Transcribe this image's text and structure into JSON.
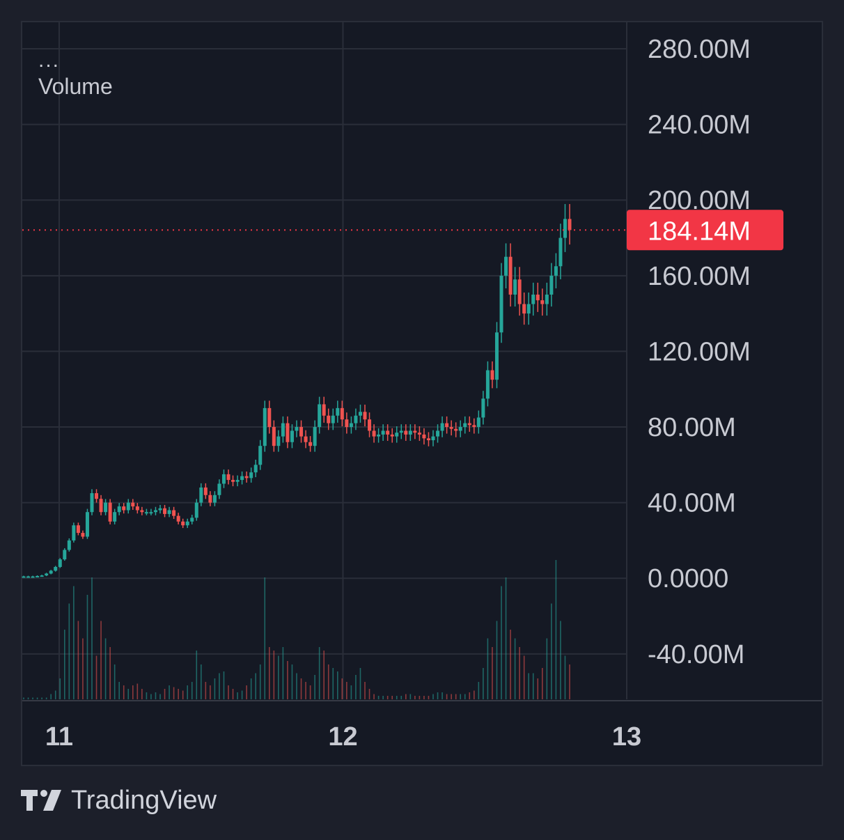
{
  "header": {
    "dots": "...",
    "indicator": "Volume"
  },
  "brand": {
    "name": "TradingView"
  },
  "colors": {
    "up": "#26a69a",
    "down": "#ef5350",
    "price_label_bg": "#f23645",
    "grid": "#2a2e39",
    "axis_text": "#c8cad2",
    "background": "#151924"
  },
  "chart_data": {
    "type": "candlestick",
    "y_axis": {
      "ticks": [
        280000000,
        240000000,
        200000000,
        160000000,
        120000000,
        80000000,
        40000000,
        0,
        -40000000
      ],
      "tick_labels": [
        "280.00M",
        "240.00M",
        "200.00M",
        "160.00M",
        "120.00M",
        "80.00M",
        "40.00M",
        "0.0000",
        "-40.00M"
      ],
      "range": [
        -64000000,
        294000000
      ]
    },
    "x_axis": {
      "ticks": [
        11,
        12,
        13
      ],
      "tick_labels": [
        "11",
        "12",
        "13"
      ],
      "range": [
        10.87,
        13
      ]
    },
    "last_price": {
      "value": 184140000,
      "label": "184.14M"
    },
    "series": [
      {
        "name": "Price",
        "close": [
          1000000,
          1000000,
          1000000,
          1200000,
          1500000,
          2500000,
          4000000,
          6000000,
          10000000,
          15000000,
          20000000,
          28000000,
          24000000,
          22000000,
          35000000,
          45000000,
          42000000,
          35000000,
          40000000,
          30000000,
          35000000,
          38000000,
          36000000,
          40000000,
          38000000,
          36000000,
          35000000,
          35000000,
          35000000,
          36000000,
          37000000,
          34000000,
          36000000,
          33000000,
          30000000,
          28000000,
          30000000,
          32000000,
          40000000,
          48000000,
          44000000,
          40000000,
          44000000,
          50000000,
          55000000,
          52000000,
          51000000,
          52000000,
          54000000,
          53000000,
          56000000,
          60000000,
          70000000,
          90000000,
          80000000,
          70000000,
          75000000,
          82000000,
          72000000,
          78000000,
          80000000,
          75000000,
          72000000,
          70000000,
          80000000,
          92000000,
          86000000,
          82000000,
          86000000,
          90000000,
          84000000,
          80000000,
          82000000,
          86000000,
          88000000,
          84000000,
          78000000,
          75000000,
          76000000,
          78000000,
          76000000,
          75000000,
          77000000,
          78000000,
          76000000,
          78000000,
          77000000,
          76000000,
          74000000,
          73000000,
          75000000,
          78000000,
          82000000,
          80000000,
          79000000,
          78000000,
          80000000,
          82000000,
          81000000,
          80000000,
          85000000,
          95000000,
          110000000,
          105000000,
          130000000,
          160000000,
          170000000,
          150000000,
          158000000,
          145000000,
          140000000,
          145000000,
          150000000,
          147000000,
          145000000,
          150000000,
          160000000,
          165000000,
          180000000,
          190000000,
          184140000
        ]
      },
      {
        "name": "Volume",
        "values": [
          1000000,
          1000000,
          1000000,
          1000000,
          1000000,
          1000000,
          3000000,
          5000000,
          12000000,
          40000000,
          55000000,
          65000000,
          45000000,
          35000000,
          60000000,
          70000000,
          25000000,
          45000000,
          35000000,
          30000000,
          20000000,
          10000000,
          8000000,
          6000000,
          8000000,
          9000000,
          6000000,
          4000000,
          3000000,
          4000000,
          3000000,
          6000000,
          8000000,
          7000000,
          6000000,
          5000000,
          8000000,
          10000000,
          28000000,
          20000000,
          10000000,
          8000000,
          12000000,
          15000000,
          16000000,
          8000000,
          6000000,
          4000000,
          5000000,
          8000000,
          12000000,
          15000000,
          20000000,
          70000000,
          30000000,
          28000000,
          25000000,
          30000000,
          22000000,
          20000000,
          15000000,
          12000000,
          10000000,
          8000000,
          14000000,
          30000000,
          28000000,
          20000000,
          18000000,
          16000000,
          12000000,
          10000000,
          8000000,
          14000000,
          18000000,
          10000000,
          6000000,
          3000000,
          2000000,
          2000000,
          2000000,
          2000000,
          2000000,
          2000000,
          3000000,
          3000000,
          2000000,
          2000000,
          2000000,
          2000000,
          3000000,
          4000000,
          4000000,
          3000000,
          3000000,
          3000000,
          3000000,
          3000000,
          4000000,
          5000000,
          10000000,
          18000000,
          35000000,
          30000000,
          45000000,
          65000000,
          70000000,
          40000000,
          35000000,
          30000000,
          25000000,
          15000000,
          15000000,
          12000000,
          18000000,
          35000000,
          55000000,
          80000000,
          45000000,
          25000000,
          20000000
        ]
      }
    ]
  }
}
